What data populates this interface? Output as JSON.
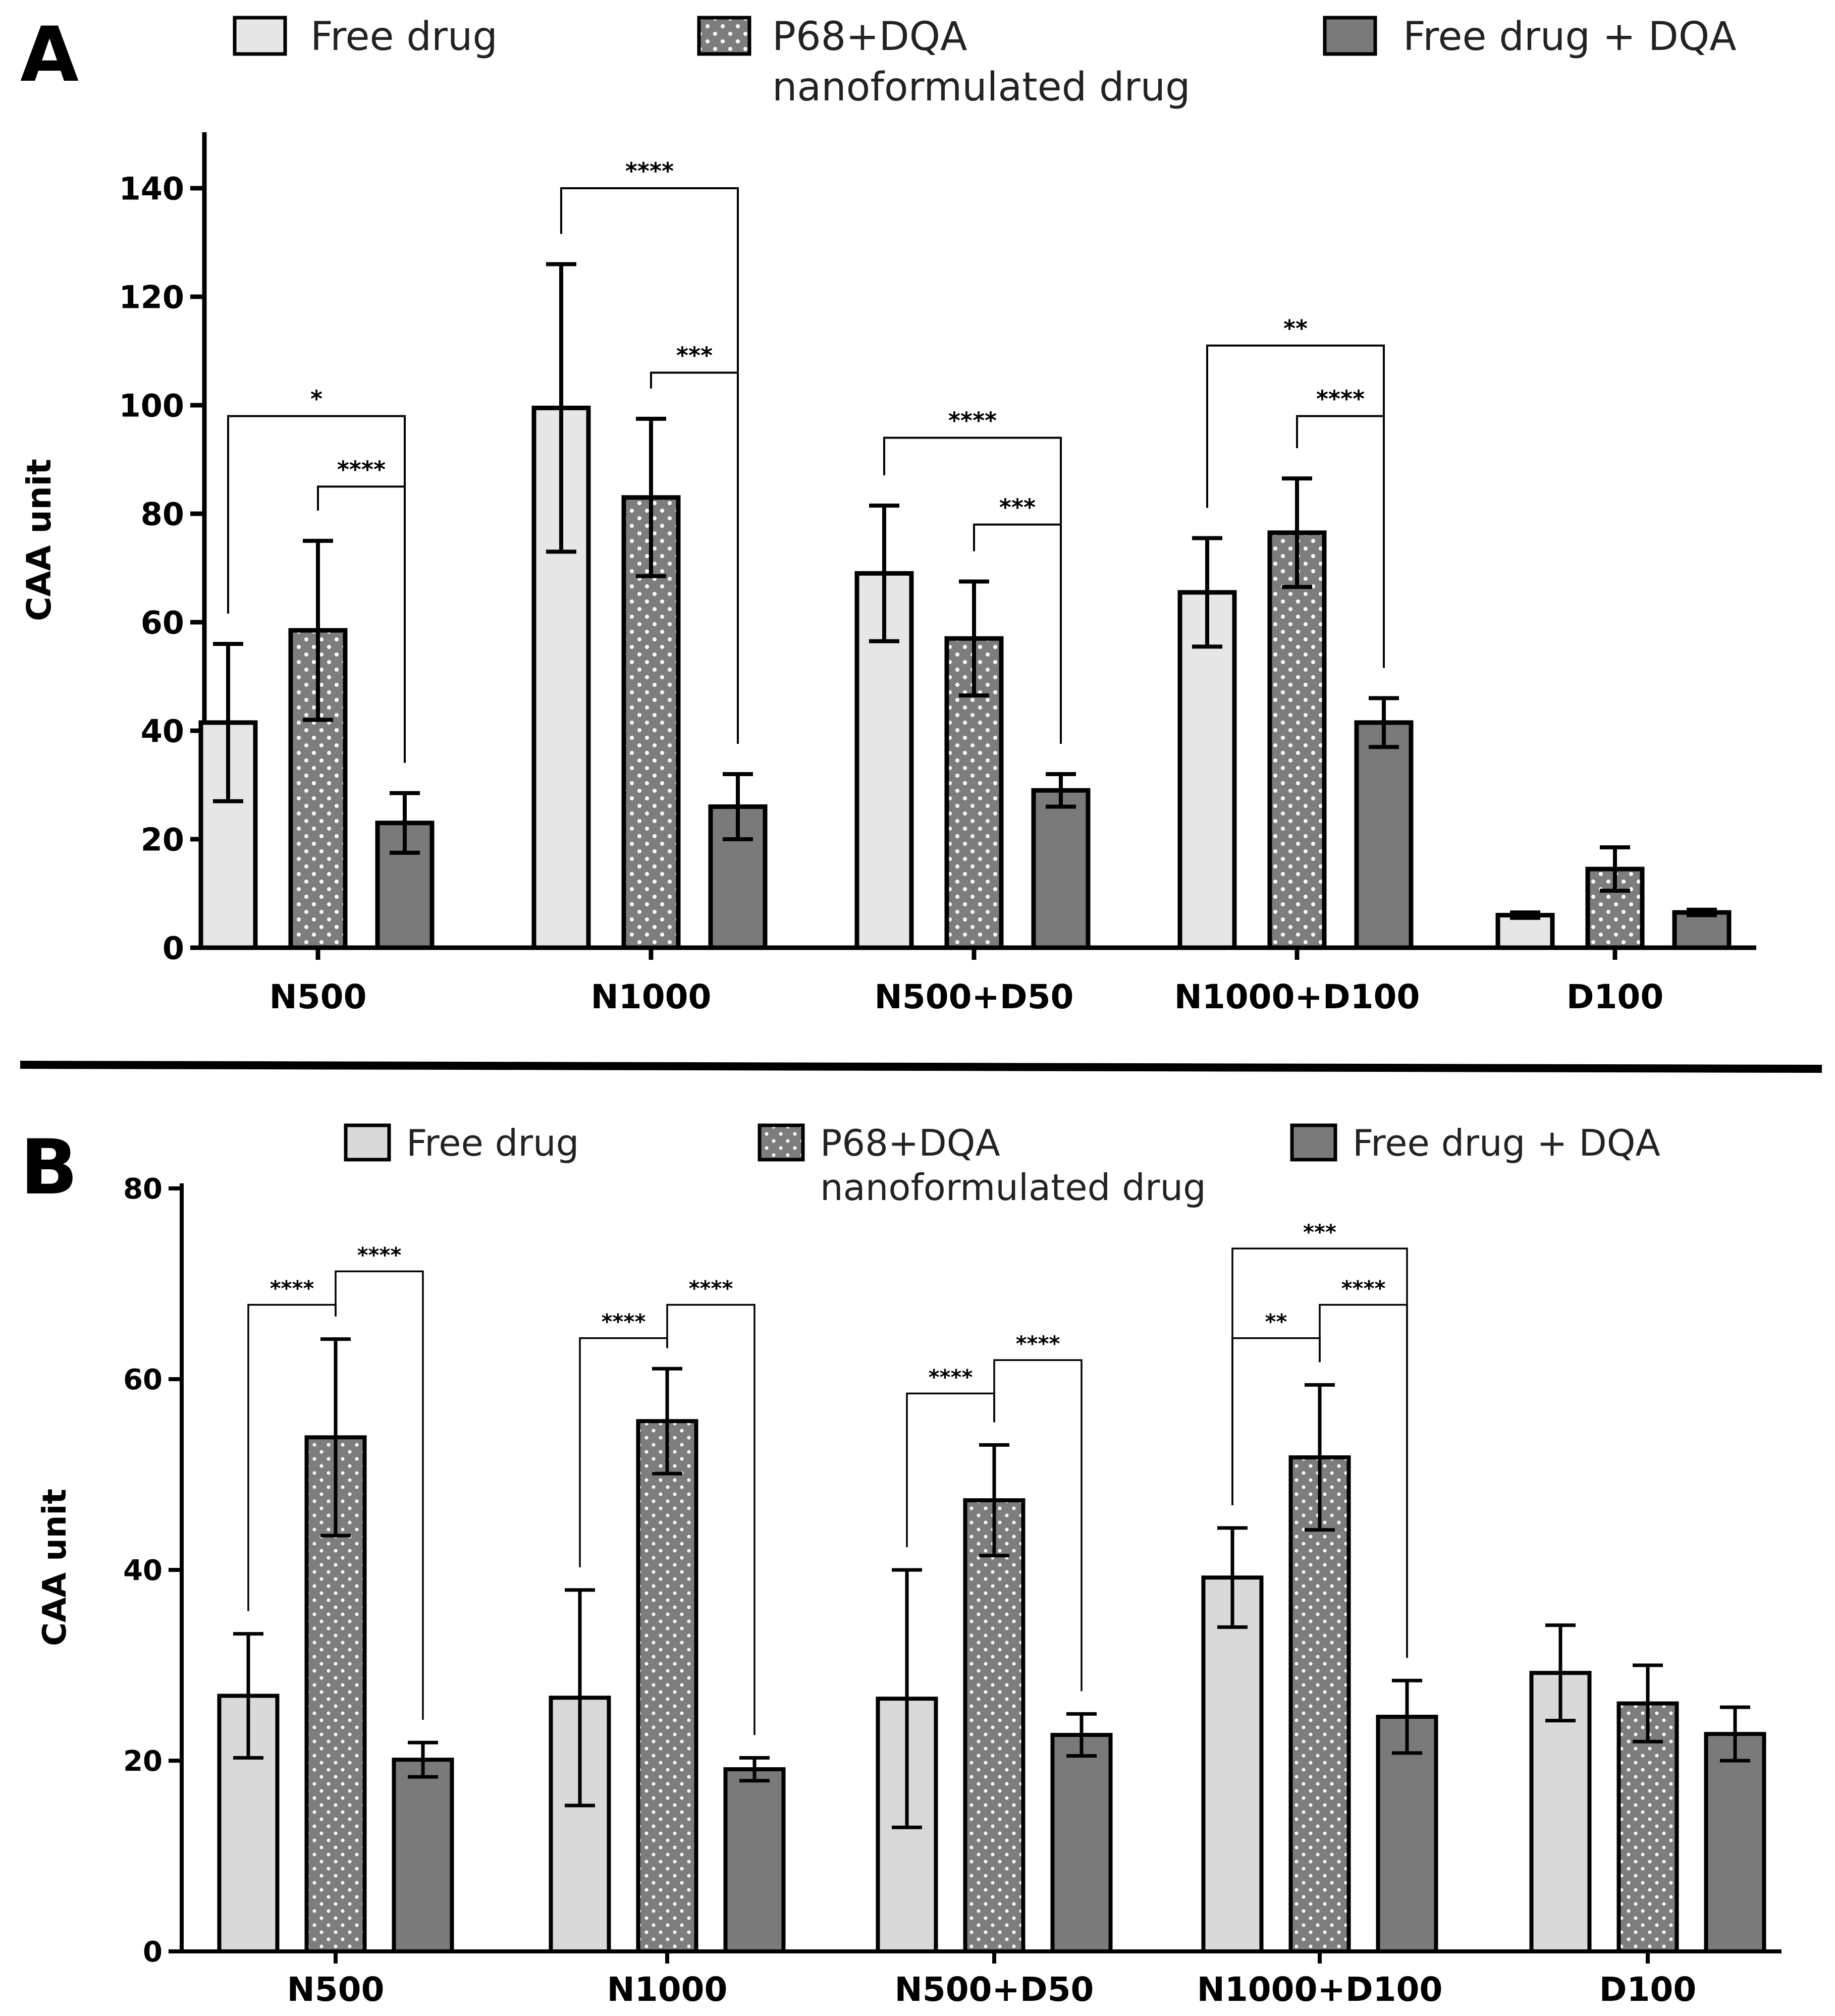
{
  "colors": {
    "free": "#e6e6e6",
    "p68": "#7d7d7d",
    "dqa": "#7a7a7a",
    "dots": "#ffffff",
    "stroke": "#000000"
  },
  "chart_data": [
    {
      "panel": "A",
      "type": "bar",
      "ylabel": "CAA unit",
      "ylim": [
        0,
        150
      ],
      "yticks": [
        0,
        20,
        40,
        60,
        80,
        100,
        120,
        140
      ],
      "categories": [
        "N500",
        "N1000",
        "N500+D50",
        "N1000+D100",
        "D100"
      ],
      "legend": [
        "Free drug",
        "P68+DQA\nnanoformulated drug",
        "Free drug + DQA"
      ],
      "series": [
        {
          "name": "Free drug",
          "values": [
            41.5,
            99.5,
            69,
            65.5,
            6
          ],
          "errors": [
            14.5,
            26.5,
            12.5,
            10,
            0.5
          ]
        },
        {
          "name": "P68+DQA nanoformulated drug",
          "values": [
            58.5,
            83,
            57,
            76.5,
            14.5
          ],
          "errors": [
            16.5,
            14.5,
            10.5,
            10,
            4
          ]
        },
        {
          "name": "Free drug + DQA",
          "values": [
            23,
            26,
            29,
            41.5,
            6.5
          ],
          "errors": [
            5.5,
            6,
            3,
            4.5,
            0.5
          ]
        }
      ],
      "significance": [
        {
          "group": 0,
          "from": 0,
          "to": 2,
          "label": "*",
          "level": 98
        },
        {
          "group": 0,
          "from": 1,
          "to": 2,
          "label": "****",
          "level": 85
        },
        {
          "group": 1,
          "from": 0,
          "to": 2,
          "label": "****",
          "level": 140
        },
        {
          "group": 1,
          "from": 1,
          "to": 2,
          "label": "***",
          "level": 106
        },
        {
          "group": 2,
          "from": 0,
          "to": 2,
          "label": "****",
          "level": 94
        },
        {
          "group": 2,
          "from": 1,
          "to": 2,
          "label": "***",
          "level": 78
        },
        {
          "group": 3,
          "from": 0,
          "to": 2,
          "label": "**",
          "level": 111
        },
        {
          "group": 3,
          "from": 1,
          "to": 2,
          "label": "****",
          "level": 98
        }
      ]
    },
    {
      "panel": "B",
      "type": "bar",
      "ylabel": "CAA unit",
      "ylim": [
        0,
        80
      ],
      "yticks": [
        0,
        20,
        40,
        60,
        80
      ],
      "categories": [
        "N500",
        "N1000",
        "N500+D50",
        "N1000+D100",
        "D100"
      ],
      "legend": [
        "Free drug",
        "P68+DQA\nnanoformulated drug",
        "Free drug + DQA"
      ],
      "series": [
        {
          "name": "Free drug",
          "values": [
            26.8,
            26.6,
            26.5,
            39.2,
            29.2
          ],
          "errors": [
            6.5,
            11.3,
            13.5,
            5.2,
            5
          ]
        },
        {
          "name": "P68+DQA nanoformulated drug",
          "values": [
            53.9,
            55.6,
            47.3,
            51.8,
            26
          ],
          "errors": [
            10.3,
            5.5,
            5.8,
            7.6,
            4
          ]
        },
        {
          "name": "Free drug + DQA",
          "values": [
            20.1,
            19.1,
            22.7,
            24.6,
            22.8
          ],
          "errors": [
            1.8,
            1.2,
            2.2,
            3.8,
            2.8
          ]
        }
      ],
      "significance": [
        {
          "group": 0,
          "from": 0,
          "to": 1,
          "label": "****",
          "level": 67.8
        },
        {
          "group": 0,
          "from": 1,
          "to": 2,
          "label": "****",
          "level": 71.3
        },
        {
          "group": 1,
          "from": 0,
          "to": 1,
          "label": "****",
          "level": 64.3
        },
        {
          "group": 1,
          "from": 1,
          "to": 2,
          "label": "****",
          "level": 67.8
        },
        {
          "group": 2,
          "from": 0,
          "to": 1,
          "label": "****",
          "level": 58.5
        },
        {
          "group": 2,
          "from": 1,
          "to": 2,
          "label": "****",
          "level": 62
        },
        {
          "group": 3,
          "from": 0,
          "to": 2,
          "label": "***",
          "level": 73.7
        },
        {
          "group": 3,
          "from": 0,
          "to": 1,
          "label": "**",
          "level": 64.3
        },
        {
          "group": 3,
          "from": 1,
          "to": 2,
          "label": "****",
          "level": 67.8
        }
      ]
    }
  ]
}
